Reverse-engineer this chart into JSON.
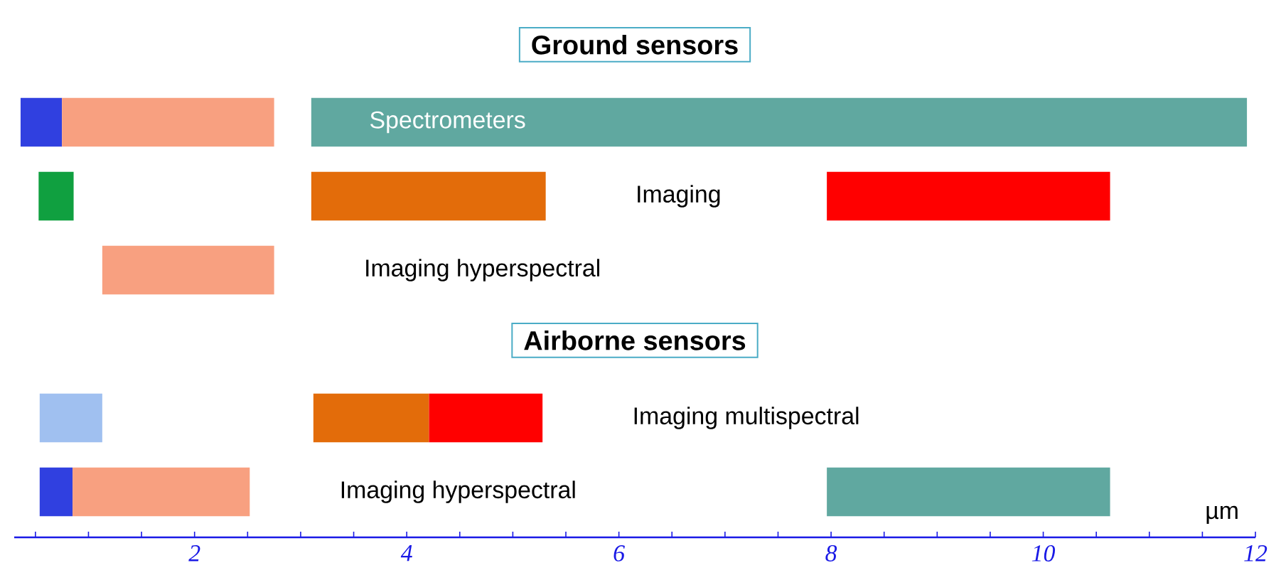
{
  "chart_data": {
    "type": "bar",
    "orientation": "horizontal",
    "title": "Ground sensors",
    "xlabel": "µm",
    "categories": [
      "Spectrometers",
      "Imaging",
      "Imaging hyperspectral",
      null,
      "Imaging multispectral",
      "Imaging hyperspectral"
    ],
    "annotations": [
      "Airborne sensors"
    ],
    "series": [
      {
        "base": [
          0.36,
          0.53,
          null,
          null,
          0.54,
          0.54
        ],
        "values": [
          0.39,
          0.33,
          null,
          null,
          0.59,
          0.31
        ],
        "colors": [
          "#3040e0",
          "#10a040",
          null,
          null,
          "#a0c0f0",
          "#3040e0"
        ]
      },
      {
        "base": [
          0.75,
          null,
          1.13,
          null,
          null,
          0.85
        ],
        "values": [
          2.0,
          null,
          1.62,
          null,
          null,
          1.67
        ],
        "colors": [
          "#f8a080",
          null,
          "#f8a080",
          null,
          null,
          "#f8a080"
        ]
      },
      {
        "base": [
          null,
          3.1,
          null,
          null,
          3.12,
          null
        ],
        "values": [
          null,
          2.21,
          null,
          null,
          1.09,
          null
        ],
        "colors": [
          null,
          "#e36c0a",
          null,
          null,
          "#e36c0a",
          null
        ]
      },
      {
        "base": [
          null,
          null,
          null,
          null,
          4.21,
          null
        ],
        "values": [
          null,
          null,
          null,
          null,
          1.07,
          null
        ],
        "colors": [
          null,
          null,
          null,
          null,
          "#ff0000",
          null
        ]
      },
      {
        "base": [
          3.1,
          7.96,
          null,
          null,
          null,
          7.96
        ],
        "values": [
          8.82,
          2.67,
          null,
          null,
          null,
          2.67
        ],
        "colors": [
          "#60a8a0",
          "#ff0000",
          null,
          null,
          null,
          "#60a8a0"
        ]
      }
    ],
    "xlim": [
      0.3,
      12
    ],
    "xticks": [
      {
        "value": 0.5,
        "label": null
      },
      {
        "value": 1,
        "label": null
      },
      {
        "value": 1.5,
        "label": null
      },
      2,
      {
        "value": 2.5,
        "label": null
      },
      {
        "value": 3,
        "label": null
      },
      {
        "value": 3.5,
        "label": null
      },
      4,
      {
        "value": 4.5,
        "label": null
      },
      {
        "value": 5,
        "label": null
      },
      {
        "value": 5.5,
        "label": null
      },
      6,
      {
        "value": 6.5,
        "label": null
      },
      {
        "value": 7,
        "label": null
      },
      {
        "value": 7.5,
        "label": null
      },
      8,
      {
        "value": 8.5,
        "label": null
      },
      {
        "value": 9,
        "label": null
      },
      {
        "value": 9.5,
        "label": null
      },
      10,
      {
        "value": 10.5,
        "label": null
      },
      {
        "value": 11,
        "label": null
      },
      {
        "value": 11.5,
        "label": null
      },
      12
    ]
  }
}
